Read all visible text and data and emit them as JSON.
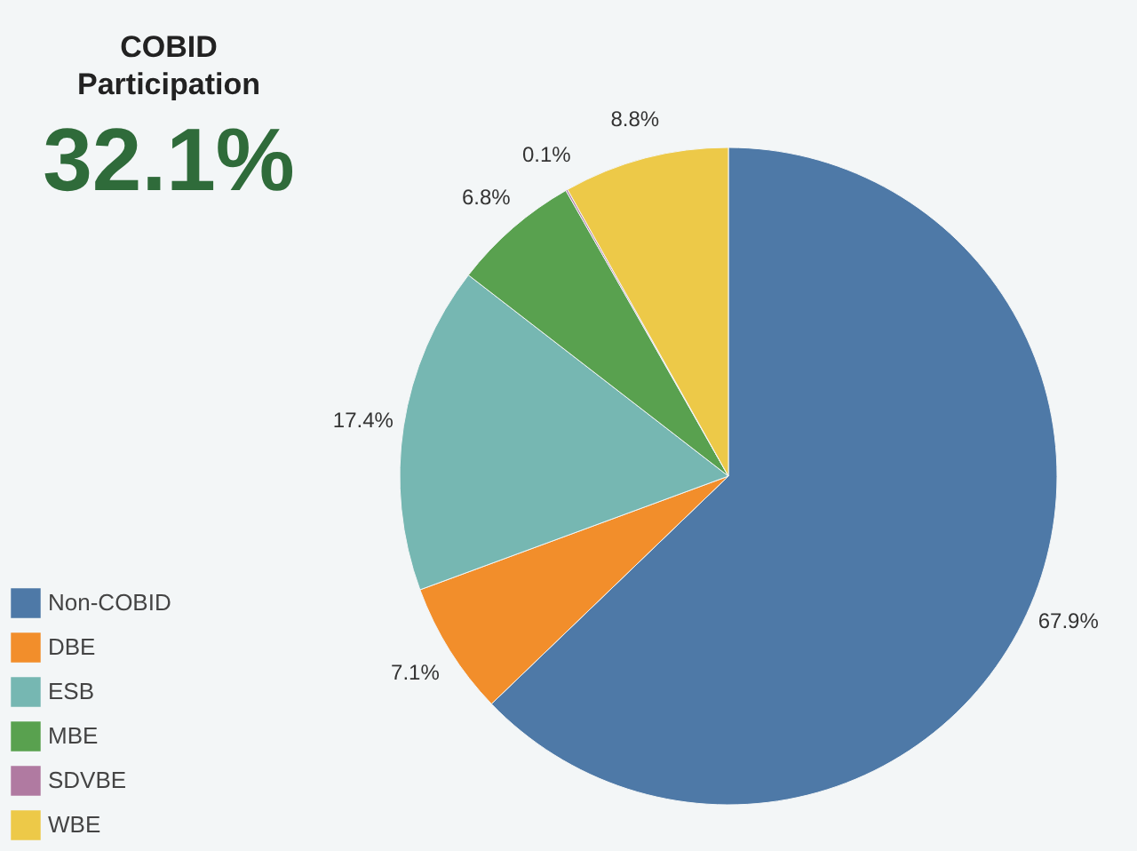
{
  "chart_data": {
    "type": "pie",
    "title": "COBID Participation",
    "subtitle": "32.1%",
    "categories": [
      "Non-COBID",
      "DBE",
      "ESB",
      "MBE",
      "SDVBE",
      "WBE"
    ],
    "values": [
      67.9,
      7.1,
      17.4,
      6.8,
      0.1,
      8.8
    ],
    "colors": [
      "#4e79a7",
      "#f28e2b",
      "#76b7b2",
      "#59a14f",
      "#b07aa1",
      "#edc948"
    ],
    "data_labels": true,
    "value_labels": [
      "67.9%",
      "7.1%",
      "17.4%",
      "6.8%",
      "0.1%",
      "8.8%"
    ],
    "legend": "bottom left"
  }
}
